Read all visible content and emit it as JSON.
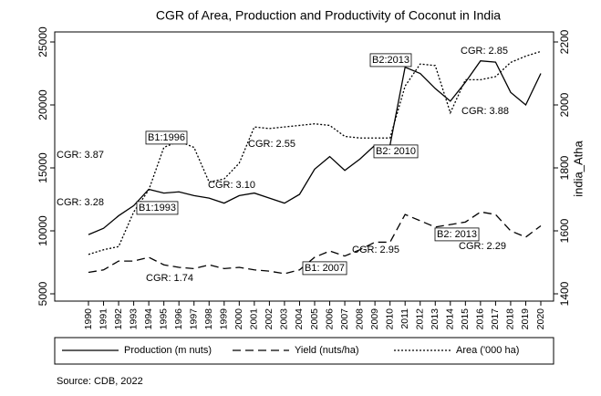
{
  "chart_data": {
    "type": "line",
    "title": "CGR of Area, Production and Productivity of Coconut in India",
    "y2label": "india_Atha",
    "source": "Source: CDB, 2022",
    "x": [
      1990,
      1991,
      1992,
      1993,
      1994,
      1995,
      1996,
      1997,
      1998,
      1999,
      2000,
      2001,
      2002,
      2003,
      2004,
      2005,
      2006,
      2007,
      2008,
      2009,
      2010,
      2011,
      2012,
      2013,
      2014,
      2015,
      2016,
      2017,
      2018,
      2019,
      2020
    ],
    "xlim": [
      1990,
      2020
    ],
    "xticks": [
      1990,
      1991,
      1992,
      1993,
      1994,
      1995,
      1996,
      1997,
      1998,
      1999,
      2000,
      2001,
      2002,
      2003,
      2004,
      2005,
      2006,
      2007,
      2008,
      2009,
      2010,
      2011,
      2012,
      2013,
      2014,
      2015,
      2016,
      2017,
      2018,
      2019,
      2020
    ],
    "ylim": [
      5000,
      25000
    ],
    "yticks": [
      5000,
      10000,
      15000,
      20000,
      25000
    ],
    "y2lim": [
      1400,
      2200
    ],
    "y2ticks": [
      1400,
      1600,
      1800,
      2000,
      2200
    ],
    "series": [
      {
        "name": "Production (m nuts)",
        "color": "#000000",
        "style": "solid",
        "values": [
          9700,
          10200,
          11200,
          12000,
          13300,
          13000,
          13100,
          12800,
          12600,
          12200,
          12800,
          13000,
          12600,
          12200,
          12900,
          14900,
          15900,
          14800,
          15700,
          16800,
          16800,
          23000,
          22500,
          21300,
          20300,
          21800,
          23500,
          23400,
          21000,
          20000,
          22500
        ]
      },
      {
        "name": "Yield (nuts/ha)",
        "color": "#000000",
        "style": "dashed",
        "values": [
          6700,
          6900,
          7600,
          7600,
          7900,
          7300,
          7100,
          7000,
          7300,
          7000,
          7100,
          6900,
          6800,
          6600,
          6900,
          7900,
          8400,
          8000,
          8500,
          9100,
          9100,
          11300,
          10800,
          10300,
          10500,
          10700,
          11500,
          11300,
          10000,
          9500,
          10400
        ]
      },
      {
        "name": "Area ('000 ha)",
        "color": "#000000",
        "style": "dotted",
        "axis": "y2",
        "values": [
          1525,
          1540,
          1550,
          1660,
          1730,
          1865,
          1885,
          1865,
          1755,
          1765,
          1815,
          1930,
          1925,
          1930,
          1935,
          1940,
          1935,
          1900,
          1895,
          1895,
          1895,
          2060,
          2130,
          2125,
          1975,
          2080,
          2080,
          2090,
          2135,
          2155,
          2170
        ]
      }
    ],
    "annotations": [
      "CGR: 3.28",
      "B1:1993",
      "CGR: 3.87",
      "B1:1996",
      "CGR: 2.55",
      "CGR: 3.10",
      "B2: 2010",
      "B2:2013",
      "CGR: 2.85",
      "CGR: 3.88",
      "CGR: 1.74",
      "B1: 2007",
      "CGR: 2.95",
      "B2: 2013",
      "CGR: 2.29"
    ]
  }
}
